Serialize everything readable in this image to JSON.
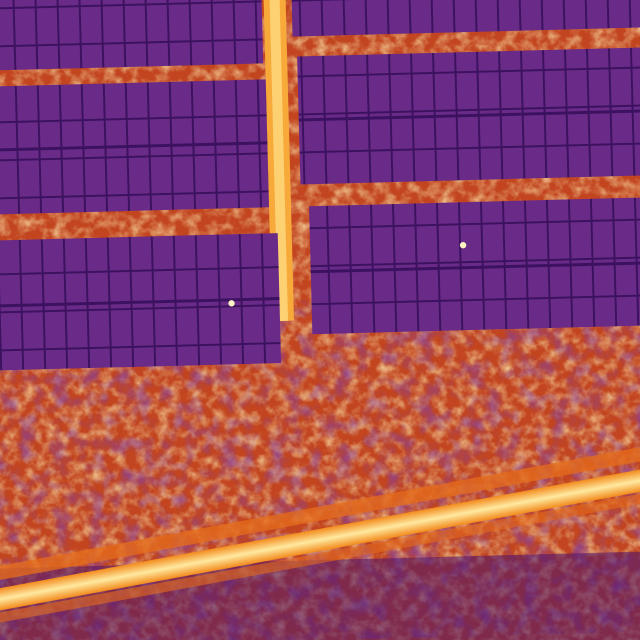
{
  "image": {
    "kind": "thermal-aerial-photo",
    "palette": "inferno",
    "colors": {
      "background": "#000000",
      "cold": "#3a0d5e",
      "panel": "#5a1f7a",
      "warm": "#c2451f",
      "hot": "#f28a1c",
      "hottest": "#ffe38a"
    }
  }
}
